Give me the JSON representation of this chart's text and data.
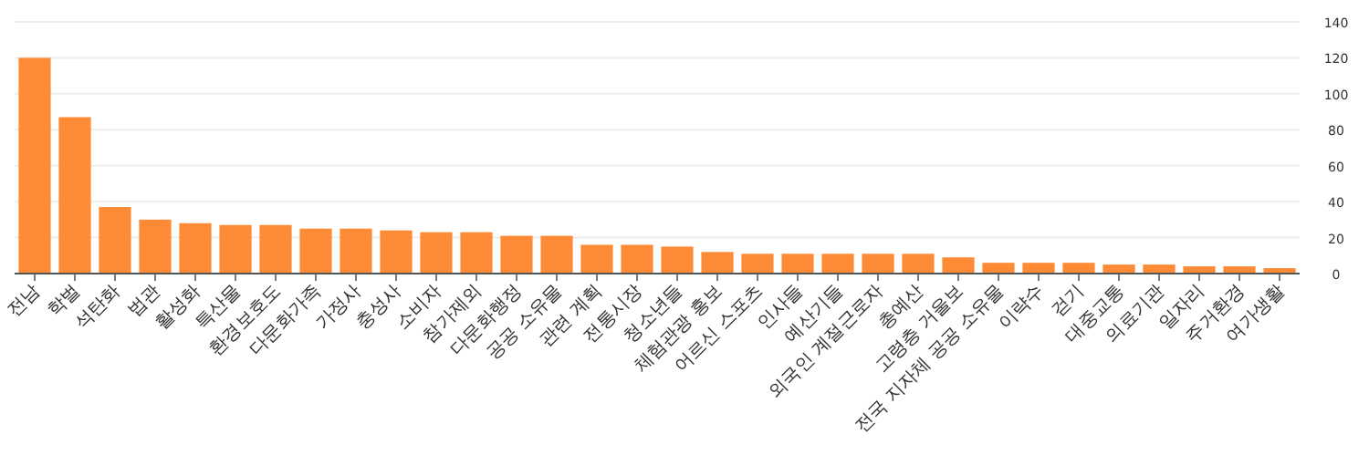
{
  "chart_data": {
    "type": "bar",
    "categories": [
      "전남",
      "학벌",
      "석탄화",
      "법관",
      "활성화",
      "특산물",
      "환경보호도",
      "다문화가족",
      "가정사",
      "충성사",
      "소비자",
      "참가제외",
      "다문화행정",
      "공공 소유물",
      "관련 계획",
      "전통시장",
      "청소년들",
      "체험관광 홍보",
      "어르신 스포츠",
      "인사들",
      "예산기들",
      "외국인 계절근로자",
      "총예산",
      "고령층 거울보",
      "전국 지자체 공공 소유물",
      "이략수",
      "걷기",
      "대중교통",
      "의료기관",
      "일자리",
      "주거환경",
      "여가생활"
    ],
    "values": [
      120,
      87,
      37,
      30,
      28,
      27,
      27,
      25,
      25,
      24,
      23,
      23,
      21,
      21,
      16,
      16,
      15,
      12,
      11,
      11,
      11,
      11,
      11,
      9,
      6,
      6,
      6,
      5,
      5,
      4,
      4,
      3
    ],
    "color": "#fd8a35",
    "ylim": [
      0,
      140
    ],
    "yticks": [
      0,
      20,
      40,
      60,
      80,
      100,
      120,
      140
    ],
    "grid": "y"
  }
}
